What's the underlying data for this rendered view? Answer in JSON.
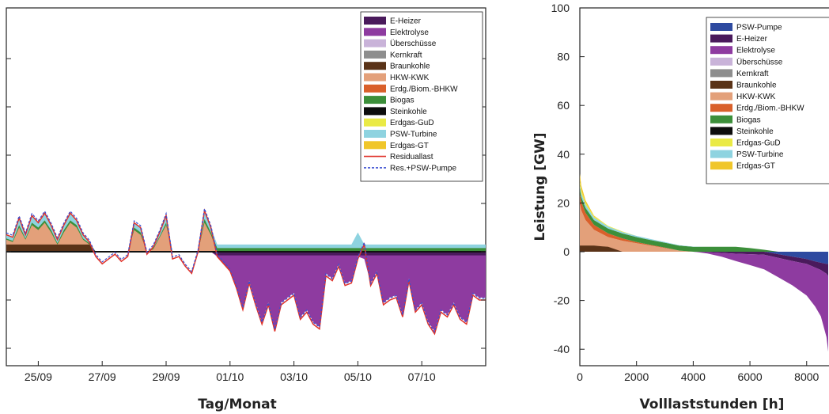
{
  "chart_data": [
    {
      "type": "area",
      "xlabel": "Tag/Monat",
      "ylabel": "",
      "x_tick_labels": [
        "25/09",
        "27/09",
        "29/09",
        "01/10",
        "03/10",
        "05/10",
        "07/10"
      ],
      "y_tick_labels": [],
      "ylim": [
        -45,
        100
      ],
      "grid": false,
      "legend_placement": "top-right",
      "legend": [
        {
          "name": "E-Heizer",
          "color": "#4a1a5c",
          "kind": "area"
        },
        {
          "name": "Elektrolyse",
          "color": "#8e3ba0",
          "kind": "area"
        },
        {
          "name": "Überschüsse",
          "color": "#c9b3d9",
          "kind": "area"
        },
        {
          "name": "Kernkraft",
          "color": "#8e8e8e",
          "kind": "area"
        },
        {
          "name": "Braunkohle",
          "color": "#5a3318",
          "kind": "area"
        },
        {
          "name": "HKW-KWK",
          "color": "#e3a07a",
          "kind": "area"
        },
        {
          "name": "Erdg./Biom.-BHKW",
          "color": "#d9602b",
          "kind": "area"
        },
        {
          "name": "Biogas",
          "color": "#3c8f3a",
          "kind": "area"
        },
        {
          "name": "Steinkohle",
          "color": "#0d0d0d",
          "kind": "area"
        },
        {
          "name": "Erdgas-GuD",
          "color": "#eaea45",
          "kind": "area"
        },
        {
          "name": "PSW-Turbine",
          "color": "#8ed3e0",
          "kind": "area"
        },
        {
          "name": "Erdgas-GT",
          "color": "#f0c62a",
          "kind": "area"
        },
        {
          "name": "Residuallast",
          "color": "#e0322a",
          "kind": "line"
        },
        {
          "name": "Res.+PSW-Pumpe",
          "color": "#3a4ed0",
          "kind": "dashed"
        }
      ],
      "x_days": [
        0,
        0.2,
        0.4,
        0.6,
        0.8,
        1.0,
        1.2,
        1.4,
        1.6,
        1.8,
        2.0,
        2.2,
        2.4,
        2.6,
        2.8,
        3.0,
        3.2,
        3.4,
        3.6,
        3.8,
        4.0,
        4.2,
        4.4,
        4.6,
        4.8,
        5.0,
        5.2,
        5.4,
        5.6,
        5.8,
        6.0,
        6.2,
        6.4,
        6.6,
        6.8,
        7.0,
        7.2,
        7.4,
        7.6,
        7.8,
        8.0,
        8.2,
        8.4,
        8.6,
        8.8,
        9.0,
        9.2,
        9.4,
        9.6,
        9.8,
        10.0,
        10.2,
        10.4,
        10.6,
        10.8,
        11.0,
        11.2,
        11.4,
        11.6,
        11.8,
        12.0,
        12.2,
        12.4,
        12.6,
        12.8,
        13.0,
        13.2,
        13.4,
        13.6,
        13.8,
        14.0,
        14.2,
        14.4,
        14.6,
        14.8,
        15.0
      ],
      "residual": [
        7,
        6,
        14,
        7,
        15,
        12,
        16,
        11,
        5,
        11,
        16,
        13,
        7,
        4,
        -2,
        -5,
        -3,
        -1,
        -4,
        -2,
        12,
        10,
        -1,
        2,
        8,
        15,
        -3,
        -2,
        -6,
        -9,
        0,
        17,
        10,
        -2,
        -5,
        -8,
        -15,
        -24,
        -13,
        -22,
        -30,
        -22,
        -33,
        -22,
        -20,
        -18,
        -28,
        -25,
        -30,
        -32,
        -10,
        -12,
        -6,
        -14,
        -13,
        -3,
        3,
        -14,
        -9,
        -22,
        -20,
        -19,
        -27,
        -12,
        -25,
        -22,
        -30,
        -34,
        -25,
        -27,
        -22,
        -28,
        -30,
        -18,
        -20,
        -20
      ],
      "gen_total": [
        7,
        6,
        14,
        7,
        15,
        12,
        16,
        11,
        5,
        11,
        16,
        13,
        7,
        4,
        0,
        0,
        0,
        0,
        0,
        0,
        12,
        10,
        0,
        2,
        8,
        15,
        0,
        0,
        0,
        0,
        0,
        17,
        10,
        3,
        3,
        3,
        3,
        3,
        3,
        3,
        3,
        3,
        3,
        3,
        3,
        3,
        3,
        3,
        3,
        3,
        3,
        3,
        3,
        3,
        3,
        8,
        3,
        3,
        3,
        3,
        3,
        3,
        3,
        3,
        3,
        3,
        3,
        3,
        3,
        3,
        3,
        3,
        3,
        3,
        3,
        3
      ],
      "hkw_kwk": [
        5,
        4,
        10,
        5,
        11,
        9,
        12,
        8,
        3,
        8,
        12,
        10,
        5,
        3,
        0,
        0,
        0,
        0,
        0,
        0,
        9,
        7,
        0,
        1,
        6,
        11,
        0,
        0,
        0,
        0,
        0,
        12,
        7,
        0,
        0,
        0,
        0,
        0,
        0,
        0,
        0,
        0,
        0,
        0,
        0,
        0,
        0,
        0,
        0,
        0,
        0,
        0,
        0,
        0,
        0,
        0,
        0,
        0,
        0,
        0,
        0,
        0,
        0,
        0,
        0,
        0,
        0,
        0,
        0,
        0,
        0,
        0,
        0,
        0,
        0,
        0
      ],
      "biogas": [
        1,
        1,
        2,
        1,
        2,
        2,
        2,
        2,
        1,
        2,
        2,
        2,
        1,
        1,
        0,
        0,
        0,
        0,
        0,
        0,
        2,
        2,
        0,
        1,
        1,
        2,
        0,
        0,
        0,
        0,
        0,
        3,
        2,
        3,
        3,
        3,
        3,
        3,
        3,
        3,
        3,
        3,
        3,
        3,
        3,
        3,
        3,
        3,
        3,
        3,
        3,
        3,
        3,
        3,
        3,
        3,
        3,
        3,
        3,
        3,
        3,
        3,
        3,
        3,
        3,
        3,
        3,
        3,
        3,
        3,
        3,
        3,
        3,
        3,
        3,
        3
      ],
      "braunkohle": [
        3,
        3,
        3,
        3,
        3,
        3,
        3,
        3,
        3,
        3,
        3,
        3,
        3,
        3,
        0,
        0,
        0,
        0,
        0,
        0,
        0,
        0,
        0,
        0,
        0,
        0,
        0,
        0,
        0,
        0,
        0,
        0,
        0,
        0,
        0,
        0,
        0,
        0,
        0,
        0,
        0,
        0,
        0,
        0,
        0,
        0,
        0,
        0,
        0,
        0,
        0,
        0,
        0,
        0,
        0,
        0,
        0,
        0,
        0,
        0,
        0,
        0,
        0,
        0,
        0,
        0,
        0,
        0,
        0,
        0,
        0,
        0,
        0,
        0,
        0,
        0
      ],
      "elektrolyse": [
        0,
        0,
        0,
        0,
        0,
        0,
        0,
        0,
        0,
        0,
        0,
        0,
        0,
        0,
        0,
        0,
        0,
        0,
        0,
        0,
        0,
        0,
        0,
        0,
        0,
        0,
        0,
        0,
        0,
        0,
        0,
        0,
        0,
        -2,
        -5,
        -8,
        -15,
        -23,
        -12,
        -21,
        -29,
        -21,
        -32,
        -21,
        -19,
        -17,
        -27,
        -24,
        -29,
        -31,
        -9,
        -11,
        -5,
        -13,
        -12,
        -2,
        -3,
        -13,
        -8,
        -21,
        -19,
        -18,
        -26,
        -11,
        -24,
        -21,
        -29,
        -33,
        -24,
        -26,
        -21,
        -27,
        -29,
        -17,
        -19,
        -19
      ]
    },
    {
      "type": "area",
      "xlabel": "Volllaststunden [h]",
      "ylabel": "Leistung [GW]",
      "x_tick_labels": [
        "0",
        "2000",
        "4000",
        "6000",
        "8000"
      ],
      "y_tick_labels": [
        "100",
        "80",
        "60",
        "40",
        "20",
        "0",
        "-20",
        "-40"
      ],
      "xlim": [
        0,
        8760
      ],
      "ylim": [
        -45,
        100
      ],
      "grid": false,
      "legend_placement": "top-right",
      "legend": [
        {
          "name": "PSW-Pumpe",
          "color": "#2e4aa0"
        },
        {
          "name": "E-Heizer",
          "color": "#4a1a5c"
        },
        {
          "name": "Elektrolyse",
          "color": "#8e3ba0"
        },
        {
          "name": "Überschüsse",
          "color": "#c9b3d9"
        },
        {
          "name": "Kernkraft",
          "color": "#8e8e8e"
        },
        {
          "name": "Braunkohle",
          "color": "#5a3318"
        },
        {
          "name": "HKW-KWK",
          "color": "#e3a07a"
        },
        {
          "name": "Erdg./Biom.-BHKW",
          "color": "#d9602b"
        },
        {
          "name": "Biogas",
          "color": "#3c8f3a"
        },
        {
          "name": "Steinkohle",
          "color": "#0d0d0d"
        },
        {
          "name": "Erdgas-GuD",
          "color": "#eaea45"
        },
        {
          "name": "PSW-Turbine",
          "color": "#8ed3e0"
        },
        {
          "name": "Erdgas-GT",
          "color": "#f0c62a"
        }
      ],
      "hours": [
        0,
        50,
        200,
        500,
        1000,
        1500,
        2000,
        2500,
        3000,
        3500,
        4000,
        4500,
        5000,
        5500,
        6000,
        6500,
        7000,
        7500,
        8000,
        8300,
        8500,
        8700,
        8760
      ],
      "hkw_kwk": [
        20,
        17,
        13,
        9,
        6,
        4.5,
        3.5,
        2.5,
        1.5,
        0.5,
        0,
        0,
        0,
        0,
        0,
        0,
        0,
        0,
        0,
        0,
        0,
        0,
        0
      ],
      "braunkohle": [
        2.5,
        2.5,
        2.5,
        2.5,
        2,
        0,
        0,
        0,
        0,
        0,
        0,
        0,
        0,
        0,
        0,
        0,
        0,
        0,
        0,
        0,
        0,
        0,
        0
      ],
      "bhkw": [
        4,
        3.5,
        3,
        2,
        1.5,
        1,
        0.5,
        0.3,
        0.2,
        0,
        0,
        0,
        0,
        0,
        0,
        0,
        0,
        0,
        0,
        0,
        0,
        0,
        0
      ],
      "biogas": [
        2,
        2,
        2,
        2,
        2,
        2,
        2,
        2,
        2,
        2,
        2,
        2,
        2,
        2,
        1.5,
        0.8,
        0,
        0,
        0,
        0,
        0,
        0,
        0
      ],
      "psw_turbine": [
        1.5,
        1.5,
        1.3,
        1,
        0.8,
        0.6,
        0.5,
        0.4,
        0.3,
        0.2,
        0.1,
        0,
        0,
        0,
        0,
        0,
        0,
        0,
        0,
        0,
        0,
        0,
        0
      ],
      "erdgas_gud": [
        1.5,
        1.2,
        0.8,
        0.5,
        0.3,
        0.2,
        0,
        0,
        0,
        0,
        0,
        0,
        0,
        0,
        0,
        0,
        0,
        0,
        0,
        0,
        0,
        0,
        0
      ],
      "erdgas_gt": [
        3,
        2,
        1,
        0.3,
        0,
        0,
        0,
        0,
        0,
        0,
        0,
        0,
        0,
        0,
        0,
        0,
        0,
        0,
        0,
        0,
        0,
        0,
        0
      ],
      "elektrolyse": [
        0,
        0,
        0,
        0,
        0,
        0,
        0,
        0,
        0,
        0,
        0,
        -0.5,
        -1.5,
        -3,
        -4.5,
        -6,
        -8,
        -10,
        -13,
        -16,
        -19,
        -26,
        -31
      ],
      "e_heizer": [
        0,
        0,
        0,
        0,
        0,
        0,
        0,
        0,
        0,
        0,
        0,
        -0.2,
        -0.5,
        -0.8,
        -1,
        -1.2,
        -1.5,
        -1.8,
        -2,
        -2.5,
        -3,
        -4,
        -5
      ],
      "psw_pumpe": [
        0,
        0,
        0,
        0,
        0,
        0,
        0,
        0,
        0,
        0,
        0,
        0,
        0,
        0,
        0,
        0,
        -1,
        -2,
        -3,
        -4,
        -4.5,
        -5,
        -5
      ]
    }
  ]
}
